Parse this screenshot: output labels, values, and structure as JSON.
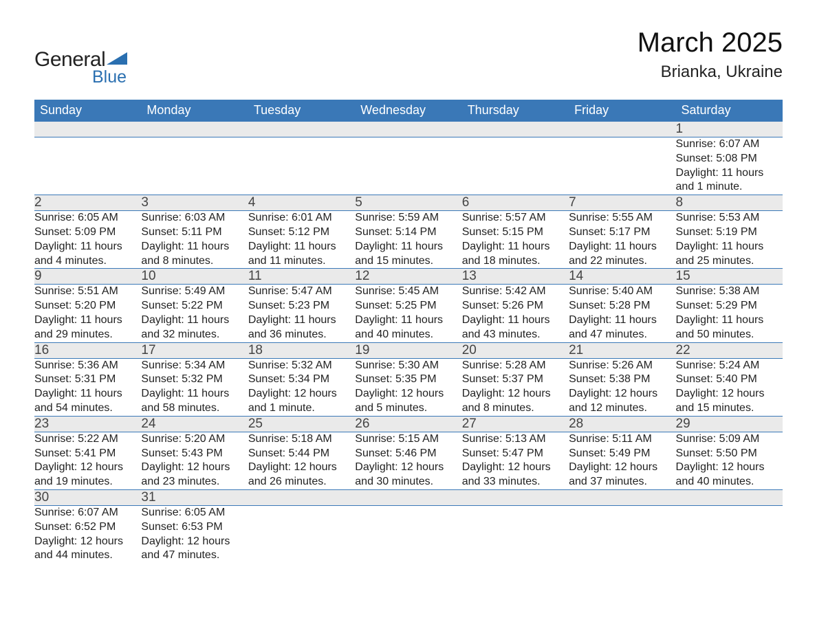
{
  "logo": {
    "word1": "General",
    "word2": "Blue",
    "accent_color": "#2a6fb0"
  },
  "title": "March 2025",
  "location": "Brianka, Ukraine",
  "header_bg": "#3a78b7",
  "header_fg": "#ffffff",
  "stripe_bg": "#eaeaea",
  "weekdays": [
    "Sunday",
    "Monday",
    "Tuesday",
    "Wednesday",
    "Thursday",
    "Friday",
    "Saturday"
  ],
  "weeks": [
    {
      "days": [
        {
          "empty": true
        },
        {
          "empty": true
        },
        {
          "empty": true
        },
        {
          "empty": true
        },
        {
          "empty": true
        },
        {
          "empty": true
        },
        {
          "num": "1",
          "sunrise": "Sunrise: 6:07 AM",
          "sunset": "Sunset: 5:08 PM",
          "dl1": "Daylight: 11 hours",
          "dl2": "and 1 minute."
        }
      ]
    },
    {
      "days": [
        {
          "num": "2",
          "sunrise": "Sunrise: 6:05 AM",
          "sunset": "Sunset: 5:09 PM",
          "dl1": "Daylight: 11 hours",
          "dl2": "and 4 minutes."
        },
        {
          "num": "3",
          "sunrise": "Sunrise: 6:03 AM",
          "sunset": "Sunset: 5:11 PM",
          "dl1": "Daylight: 11 hours",
          "dl2": "and 8 minutes."
        },
        {
          "num": "4",
          "sunrise": "Sunrise: 6:01 AM",
          "sunset": "Sunset: 5:12 PM",
          "dl1": "Daylight: 11 hours",
          "dl2": "and 11 minutes."
        },
        {
          "num": "5",
          "sunrise": "Sunrise: 5:59 AM",
          "sunset": "Sunset: 5:14 PM",
          "dl1": "Daylight: 11 hours",
          "dl2": "and 15 minutes."
        },
        {
          "num": "6",
          "sunrise": "Sunrise: 5:57 AM",
          "sunset": "Sunset: 5:15 PM",
          "dl1": "Daylight: 11 hours",
          "dl2": "and 18 minutes."
        },
        {
          "num": "7",
          "sunrise": "Sunrise: 5:55 AM",
          "sunset": "Sunset: 5:17 PM",
          "dl1": "Daylight: 11 hours",
          "dl2": "and 22 minutes."
        },
        {
          "num": "8",
          "sunrise": "Sunrise: 5:53 AM",
          "sunset": "Sunset: 5:19 PM",
          "dl1": "Daylight: 11 hours",
          "dl2": "and 25 minutes."
        }
      ]
    },
    {
      "days": [
        {
          "num": "9",
          "sunrise": "Sunrise: 5:51 AM",
          "sunset": "Sunset: 5:20 PM",
          "dl1": "Daylight: 11 hours",
          "dl2": "and 29 minutes."
        },
        {
          "num": "10",
          "sunrise": "Sunrise: 5:49 AM",
          "sunset": "Sunset: 5:22 PM",
          "dl1": "Daylight: 11 hours",
          "dl2": "and 32 minutes."
        },
        {
          "num": "11",
          "sunrise": "Sunrise: 5:47 AM",
          "sunset": "Sunset: 5:23 PM",
          "dl1": "Daylight: 11 hours",
          "dl2": "and 36 minutes."
        },
        {
          "num": "12",
          "sunrise": "Sunrise: 5:45 AM",
          "sunset": "Sunset: 5:25 PM",
          "dl1": "Daylight: 11 hours",
          "dl2": "and 40 minutes."
        },
        {
          "num": "13",
          "sunrise": "Sunrise: 5:42 AM",
          "sunset": "Sunset: 5:26 PM",
          "dl1": "Daylight: 11 hours",
          "dl2": "and 43 minutes."
        },
        {
          "num": "14",
          "sunrise": "Sunrise: 5:40 AM",
          "sunset": "Sunset: 5:28 PM",
          "dl1": "Daylight: 11 hours",
          "dl2": "and 47 minutes."
        },
        {
          "num": "15",
          "sunrise": "Sunrise: 5:38 AM",
          "sunset": "Sunset: 5:29 PM",
          "dl1": "Daylight: 11 hours",
          "dl2": "and 50 minutes."
        }
      ]
    },
    {
      "days": [
        {
          "num": "16",
          "sunrise": "Sunrise: 5:36 AM",
          "sunset": "Sunset: 5:31 PM",
          "dl1": "Daylight: 11 hours",
          "dl2": "and 54 minutes."
        },
        {
          "num": "17",
          "sunrise": "Sunrise: 5:34 AM",
          "sunset": "Sunset: 5:32 PM",
          "dl1": "Daylight: 11 hours",
          "dl2": "and 58 minutes."
        },
        {
          "num": "18",
          "sunrise": "Sunrise: 5:32 AM",
          "sunset": "Sunset: 5:34 PM",
          "dl1": "Daylight: 12 hours",
          "dl2": "and 1 minute."
        },
        {
          "num": "19",
          "sunrise": "Sunrise: 5:30 AM",
          "sunset": "Sunset: 5:35 PM",
          "dl1": "Daylight: 12 hours",
          "dl2": "and 5 minutes."
        },
        {
          "num": "20",
          "sunrise": "Sunrise: 5:28 AM",
          "sunset": "Sunset: 5:37 PM",
          "dl1": "Daylight: 12 hours",
          "dl2": "and 8 minutes."
        },
        {
          "num": "21",
          "sunrise": "Sunrise: 5:26 AM",
          "sunset": "Sunset: 5:38 PM",
          "dl1": "Daylight: 12 hours",
          "dl2": "and 12 minutes."
        },
        {
          "num": "22",
          "sunrise": "Sunrise: 5:24 AM",
          "sunset": "Sunset: 5:40 PM",
          "dl1": "Daylight: 12 hours",
          "dl2": "and 15 minutes."
        }
      ]
    },
    {
      "days": [
        {
          "num": "23",
          "sunrise": "Sunrise: 5:22 AM",
          "sunset": "Sunset: 5:41 PM",
          "dl1": "Daylight: 12 hours",
          "dl2": "and 19 minutes."
        },
        {
          "num": "24",
          "sunrise": "Sunrise: 5:20 AM",
          "sunset": "Sunset: 5:43 PM",
          "dl1": "Daylight: 12 hours",
          "dl2": "and 23 minutes."
        },
        {
          "num": "25",
          "sunrise": "Sunrise: 5:18 AM",
          "sunset": "Sunset: 5:44 PM",
          "dl1": "Daylight: 12 hours",
          "dl2": "and 26 minutes."
        },
        {
          "num": "26",
          "sunrise": "Sunrise: 5:15 AM",
          "sunset": "Sunset: 5:46 PM",
          "dl1": "Daylight: 12 hours",
          "dl2": "and 30 minutes."
        },
        {
          "num": "27",
          "sunrise": "Sunrise: 5:13 AM",
          "sunset": "Sunset: 5:47 PM",
          "dl1": "Daylight: 12 hours",
          "dl2": "and 33 minutes."
        },
        {
          "num": "28",
          "sunrise": "Sunrise: 5:11 AM",
          "sunset": "Sunset: 5:49 PM",
          "dl1": "Daylight: 12 hours",
          "dl2": "and 37 minutes."
        },
        {
          "num": "29",
          "sunrise": "Sunrise: 5:09 AM",
          "sunset": "Sunset: 5:50 PM",
          "dl1": "Daylight: 12 hours",
          "dl2": "and 40 minutes."
        }
      ]
    },
    {
      "days": [
        {
          "num": "30",
          "sunrise": "Sunrise: 6:07 AM",
          "sunset": "Sunset: 6:52 PM",
          "dl1": "Daylight: 12 hours",
          "dl2": "and 44 minutes."
        },
        {
          "num": "31",
          "sunrise": "Sunrise: 6:05 AM",
          "sunset": "Sunset: 6:53 PM",
          "dl1": "Daylight: 12 hours",
          "dl2": "and 47 minutes."
        },
        {
          "empty": true
        },
        {
          "empty": true
        },
        {
          "empty": true
        },
        {
          "empty": true
        },
        {
          "empty": true
        }
      ]
    }
  ]
}
